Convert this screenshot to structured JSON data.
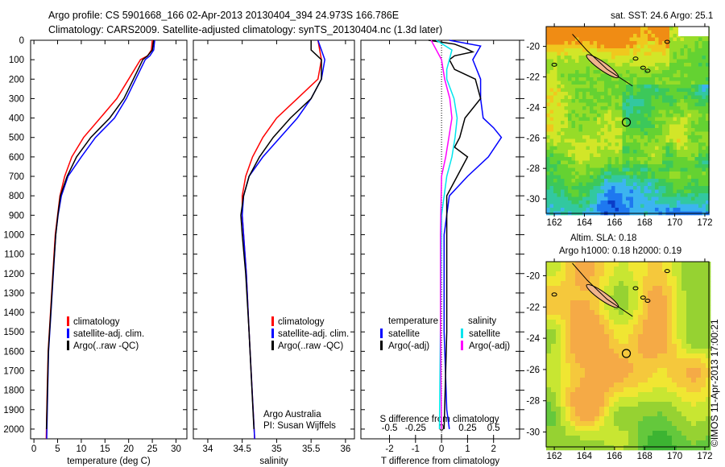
{
  "header": {
    "line1": "Argo profile: CS 5901668_166 02-Apr-2013 20130404_394 24.973S 166.786E",
    "line2": "Climatology: CARS2009. Satellite-adjusted climatology: synTS_20130404.nc (1.3d later)"
  },
  "credit": "©IMOS 11-Apr-2013 17:00:21",
  "colors": {
    "climatology": "#ff0000",
    "satellite": "#0000ff",
    "argo": "#000000",
    "sal_satellite": "#00e5ee",
    "sal_argo": "#ff00ff"
  },
  "chart_data": [
    {
      "type": "line",
      "id": "temp",
      "xlabel": "temperature (deg C)",
      "ylabel": "",
      "xlim": [
        -0.7,
        32.3
      ],
      "ylim": [
        2050,
        0
      ],
      "xticks": [
        0,
        5,
        10,
        15,
        20,
        25,
        30
      ],
      "yticks": [
        0,
        100,
        200,
        300,
        400,
        500,
        600,
        700,
        800,
        900,
        1000,
        1100,
        1200,
        1300,
        1400,
        1500,
        1600,
        1700,
        1800,
        1900,
        2000
      ],
      "legend": [
        "climatology",
        "satellite-adj. clim.",
        "Argo(..raw -QC)"
      ],
      "series": [
        {
          "name": "climatology",
          "color": "#ff0000",
          "depth": [
            0,
            50,
            80,
            100,
            200,
            300,
            400,
            500,
            600,
            700,
            800,
            900,
            1000,
            1200,
            1400,
            1600,
            1800,
            2050
          ],
          "values": [
            25,
            24.8,
            24,
            22.5,
            20,
            17.5,
            14,
            10.5,
            8,
            6.5,
            5.5,
            5,
            4.5,
            4,
            3.5,
            3,
            2.8,
            2.6
          ]
        },
        {
          "name": "satellite-adj. clim.",
          "color": "#0000ff",
          "depth": [
            0,
            50,
            80,
            100,
            200,
            300,
            400,
            500,
            600,
            700,
            800,
            900,
            1000,
            1200,
            1400,
            1600,
            1800,
            2050
          ],
          "values": [
            25.5,
            25.3,
            24.5,
            23.5,
            21.5,
            19.5,
            17,
            13,
            10,
            7.2,
            5.8,
            5.1,
            4.6,
            4.1,
            3.6,
            3.1,
            2.9,
            2.7
          ]
        },
        {
          "name": "Argo(..raw -QC)",
          "color": "#000000",
          "depth": [
            0,
            50,
            80,
            100,
            200,
            300,
            400,
            500,
            600,
            700,
            800,
            900,
            1000,
            1200,
            1400,
            1600,
            1800,
            2000
          ],
          "values": [
            25.3,
            25,
            24,
            23,
            21,
            19,
            16,
            12,
            9,
            7,
            5.6,
            5.05,
            4.6,
            4.05,
            3.55,
            3.05,
            2.85,
            2.65
          ]
        }
      ]
    },
    {
      "type": "line",
      "id": "sal",
      "xlabel": "salinity",
      "xlim": [
        33.79,
        36.13
      ],
      "ylim": [
        2050,
        0
      ],
      "xticks": [
        34,
        34.5,
        35,
        35.5,
        36
      ],
      "legend": [
        "climatology",
        "satellite-adj. clim.",
        "Argo(..raw -QC)"
      ],
      "annotation": [
        "Argo Australia",
        "PI: Susan Wijffels"
      ],
      "series": [
        {
          "name": "climatology",
          "color": "#ff0000",
          "depth": [
            0,
            100,
            200,
            300,
            400,
            500,
            600,
            700,
            800,
            900,
            1000,
            1200,
            1500,
            2050
          ],
          "values": [
            35.6,
            35.65,
            35.6,
            35.3,
            35.0,
            34.8,
            34.65,
            34.55,
            34.5,
            34.5,
            34.52,
            34.56,
            34.6,
            34.68
          ]
        },
        {
          "name": "satellite-adj. clim.",
          "color": "#0000ff",
          "depth": [
            0,
            100,
            200,
            300,
            400,
            500,
            600,
            700,
            800,
            900,
            1000,
            1200,
            1500,
            2050
          ],
          "values": [
            35.6,
            35.7,
            35.65,
            35.5,
            35.3,
            35.05,
            34.8,
            34.6,
            34.52,
            34.5,
            34.52,
            34.56,
            34.6,
            34.68
          ]
        },
        {
          "name": "Argo(..raw -QC)",
          "color": "#000000",
          "depth": [
            0,
            50,
            100,
            200,
            300,
            400,
            500,
            600,
            700,
            800,
            900,
            1000,
            1200,
            1500,
            2000
          ],
          "values": [
            35.5,
            35.5,
            35.65,
            35.65,
            35.5,
            35.2,
            34.95,
            34.75,
            34.6,
            34.52,
            34.48,
            34.5,
            34.55,
            34.6,
            34.67
          ]
        }
      ]
    },
    {
      "type": "line",
      "id": "diff",
      "xlabel": "T difference from climatology",
      "x2label": "S difference from climatology",
      "xlim": [
        -3.1,
        3.0
      ],
      "ylim": [
        2050,
        0
      ],
      "xticks": [
        -2,
        -1,
        0,
        1,
        2
      ],
      "x2ticks": [
        -0.5,
        -0.25,
        0,
        0.25,
        0.5
      ],
      "s_scale": 4,
      "legend_titles": [
        "temperature",
        "salinity"
      ],
      "legend": [
        "satellite",
        "Argo(-adj)",
        "satellite",
        "Argo(-adj)"
      ],
      "series": [
        {
          "name": "T satellite",
          "color": "#0000ff",
          "depth": [
            0,
            30,
            100,
            200,
            300,
            400,
            450,
            500,
            600,
            700,
            800,
            1000,
            1500,
            1900,
            2000
          ],
          "values": [
            0.3,
            1.5,
            1.2,
            1.5,
            1.5,
            1.6,
            2,
            2.3,
            1.8,
            1.0,
            0.3,
            0.1,
            0.1,
            0.2,
            0.3
          ]
        },
        {
          "name": "T Argo(-adj)",
          "color": "#000000",
          "depth": [
            0,
            20,
            40,
            60,
            80,
            100,
            150,
            200,
            300,
            400,
            500,
            550,
            600,
            700,
            800,
            1000,
            1500,
            2000
          ],
          "values": [
            -0.5,
            0.5,
            0.9,
            1.2,
            0.5,
            0.3,
            0.5,
            1.3,
            1.5,
            0.9,
            0.7,
            0.5,
            1.0,
            0.6,
            0.2,
            0.2,
            0.2,
            0.1
          ]
        },
        {
          "name": "S satellite",
          "color": "#00e5ee",
          "depth": [
            0,
            50,
            150,
            200,
            300,
            400,
            500,
            600,
            700,
            900,
            2000
          ],
          "values": [
            -0.05,
            0.1,
            0.05,
            0.05,
            0.12,
            0.15,
            0.13,
            0.1,
            0.05,
            0,
            -0.02
          ],
          "is_salinity": true
        },
        {
          "name": "S Argo(-adj)",
          "color": "#ff00ff",
          "depth": [
            0,
            50,
            100,
            200,
            300,
            400,
            500,
            600,
            700,
            1000,
            1500,
            2000
          ],
          "values": [
            -0.1,
            -0.05,
            0,
            0.03,
            0.08,
            0.1,
            0.07,
            0.04,
            0,
            -0.01,
            -0.01,
            0
          ],
          "is_salinity": true
        }
      ]
    }
  ],
  "maps": [
    {
      "id": "sst",
      "title": "sat. SST: 24.6 Argo: 25.1",
      "lon": [
        161.46,
        172.27
      ],
      "lat": [
        -30.95,
        -18.7
      ],
      "xticks": [
        162,
        164,
        166,
        168,
        170,
        172
      ],
      "yticks": [
        -20,
        -22,
        -24,
        -26,
        -28,
        -30
      ],
      "argo_pos": [
        166.786,
        -24.973
      ]
    },
    {
      "id": "sla",
      "title": "Altim. SLA: 0.18",
      "title2": "Argo h1000: 0.18 h2000: 0.19",
      "lon": [
        161.46,
        172.27
      ],
      "lat": [
        -30.95,
        -19.1
      ],
      "xticks": [
        162,
        164,
        166,
        168,
        170,
        172
      ],
      "yticks": [
        -20,
        -22,
        -24,
        -26,
        -28,
        -30
      ],
      "argo_pos": [
        166.786,
        -24.973
      ]
    }
  ]
}
